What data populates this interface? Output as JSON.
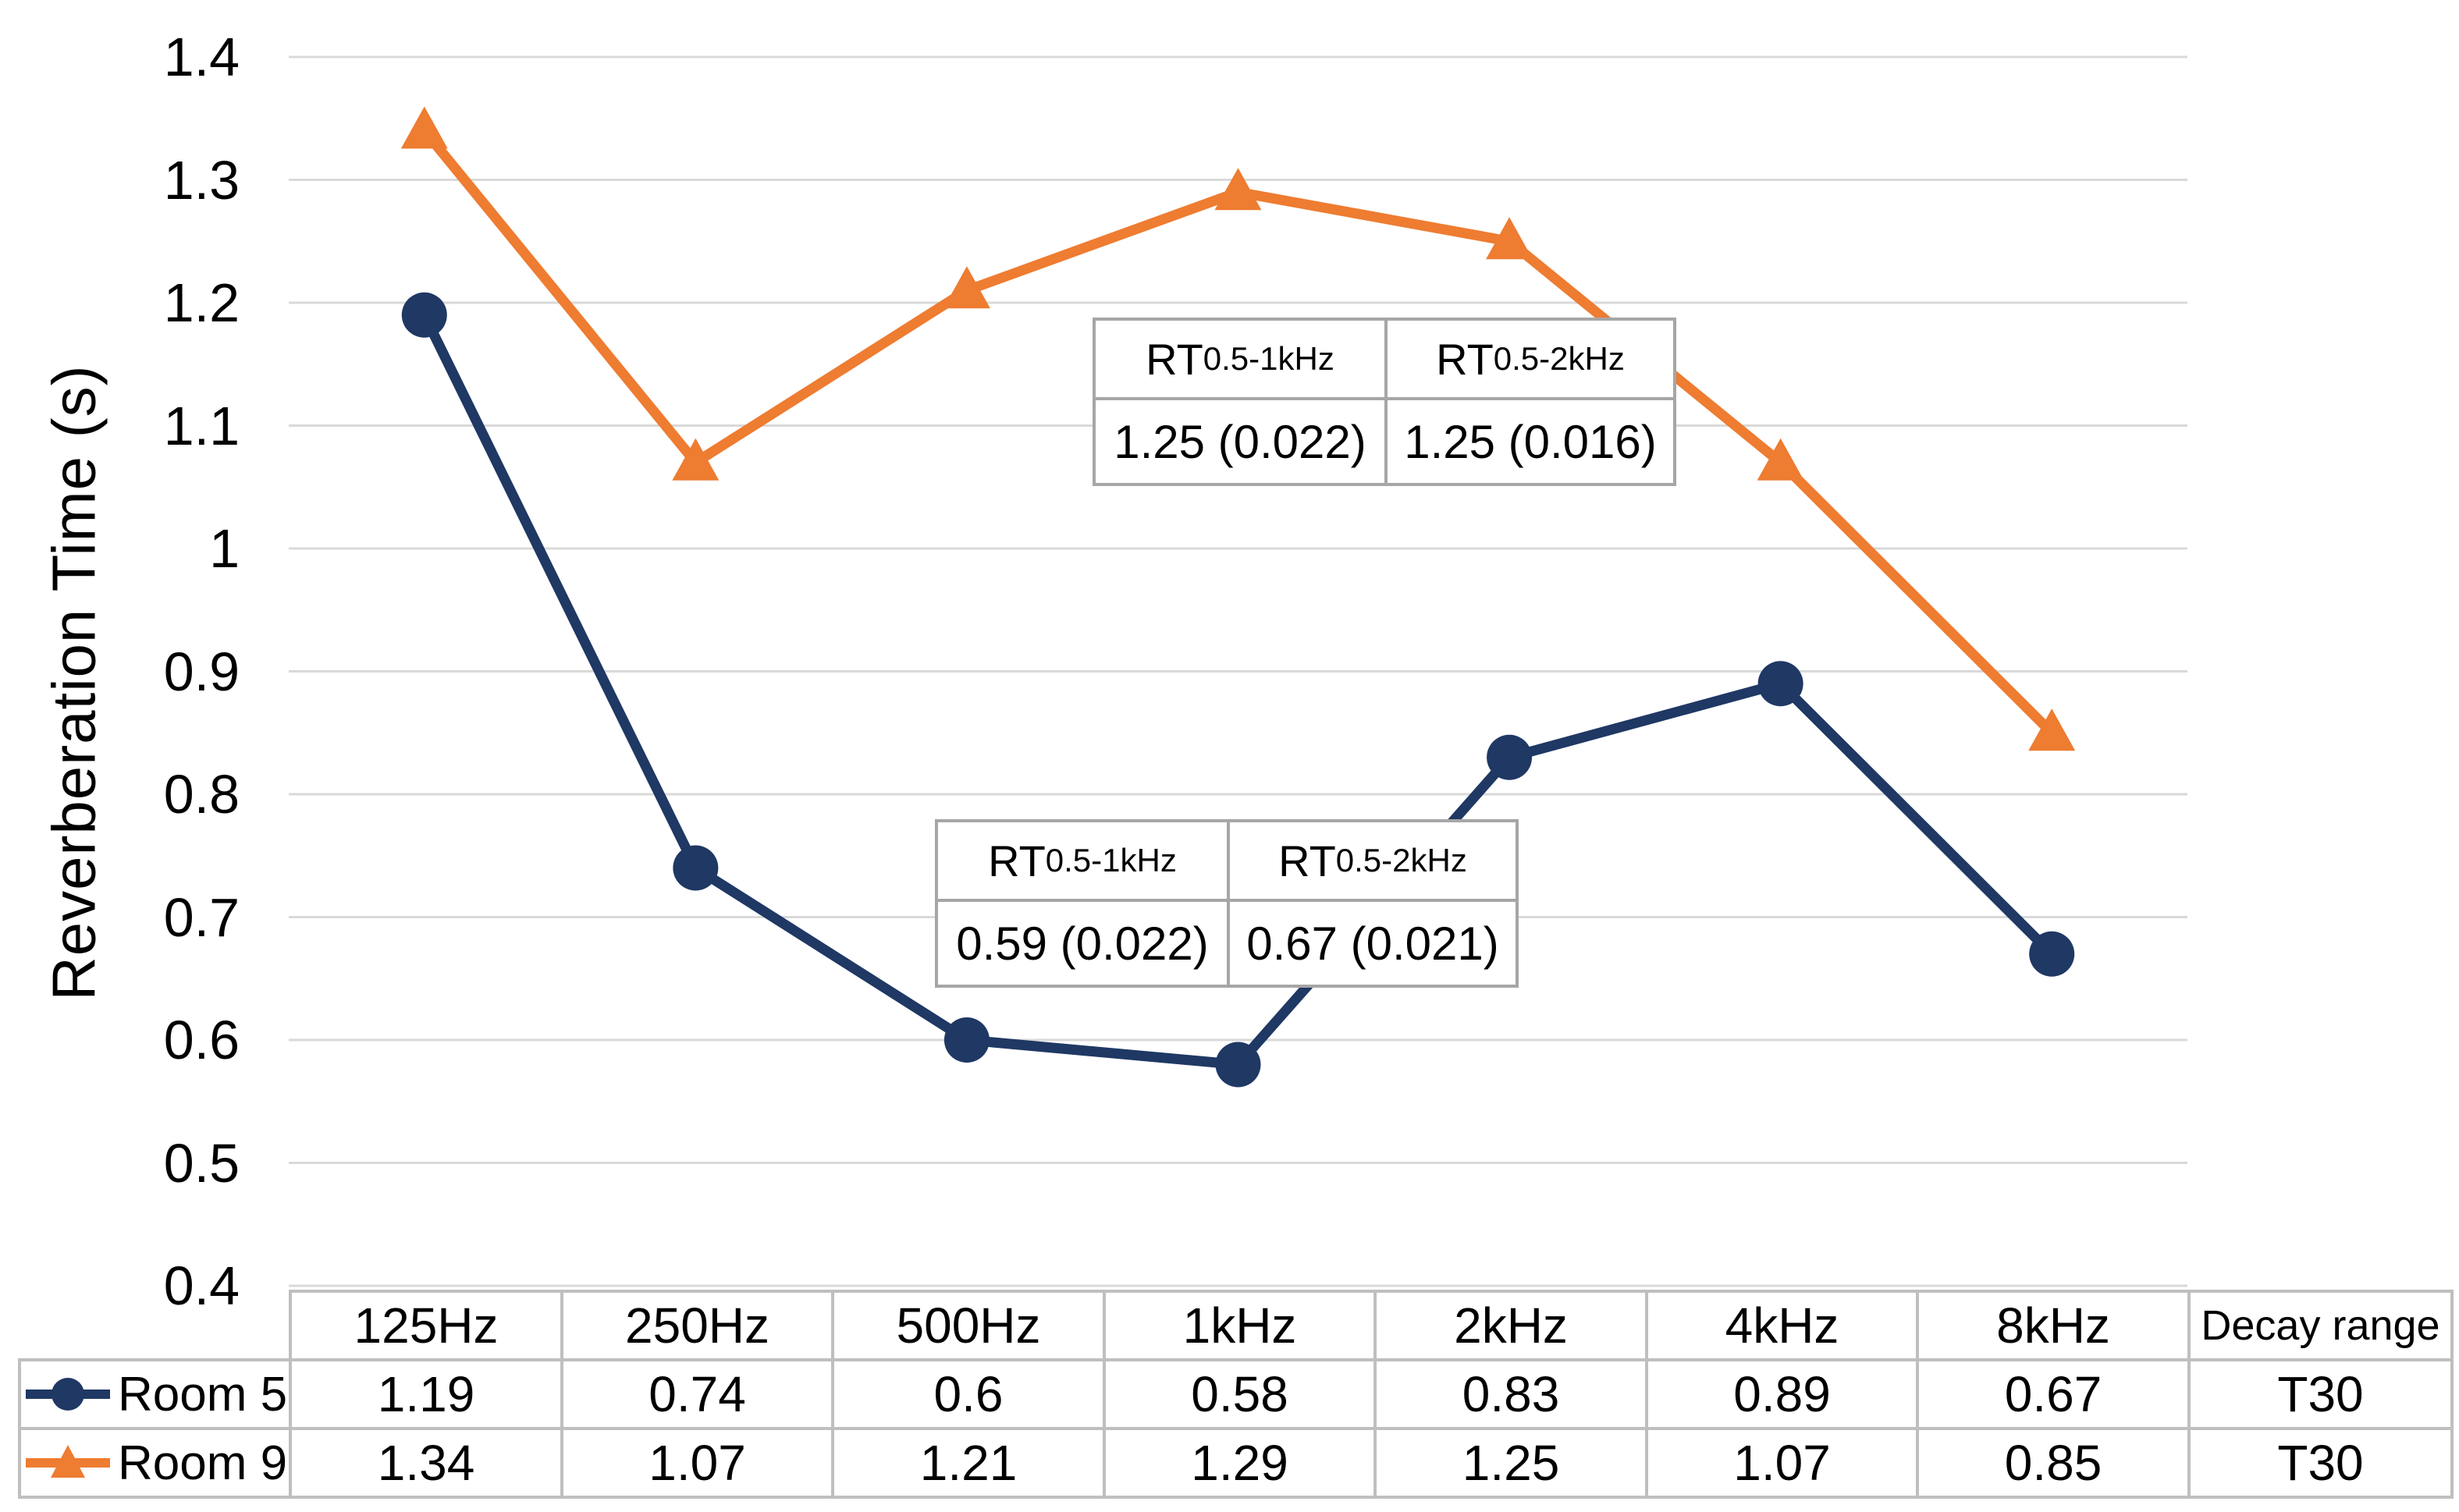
{
  "figure": {
    "background": "#FFFFFF"
  },
  "chart_data": {
    "type": "line",
    "title": "",
    "xlabel": "",
    "ylabel": "Reverberation Time (s)",
    "ylim": [
      0.4,
      1.4
    ],
    "yticks": [
      "1.4",
      "1.3",
      "1.2",
      "1.1",
      "1",
      "0.9",
      "0.8",
      "0.7",
      "0.6",
      "0.5",
      "0.4"
    ],
    "grid": true,
    "legend_position": "bottom-left-of-data-table",
    "categories": [
      "125Hz",
      "250Hz",
      "500Hz",
      "1kHz",
      "2kHz",
      "4kHz",
      "8kHz"
    ],
    "series": [
      {
        "name": "Room 5",
        "color": "#1F3864",
        "marker": "circle",
        "values": [
          1.19,
          0.74,
          0.6,
          0.58,
          0.83,
          0.89,
          0.67
        ]
      },
      {
        "name": "Room 9",
        "color": "#EE7C31",
        "marker": "triangle",
        "values": [
          1.34,
          1.07,
          1.21,
          1.29,
          1.25,
          1.07,
          0.85
        ]
      }
    ],
    "annotations": [
      {
        "cells": [
          {
            "prefix": "RT",
            "sub": "0.5-1kHz",
            "value": "1.25 (0.022)"
          },
          {
            "prefix": "RT",
            "sub": "0.5-2kHz",
            "value": "1.25 (0.016)"
          }
        ]
      },
      {
        "cells": [
          {
            "prefix": "RT",
            "sub": "0.5-1kHz",
            "value": "0.59 (0.022)"
          },
          {
            "prefix": "RT",
            "sub": "0.5-2kHz",
            "value": "0.67 (0.021)"
          }
        ]
      }
    ]
  },
  "table": {
    "col_headers": [
      "125Hz",
      "250Hz",
      "500Hz",
      "1kHz",
      "2kHz",
      "4kHz",
      "8kHz",
      "Decay range"
    ],
    "rows": [
      {
        "label": "Room 5",
        "marker": "circle",
        "color": "#1F3864",
        "values": [
          "1.19",
          "0.74",
          "0.6",
          "0.58",
          "0.83",
          "0.89",
          "0.67"
        ],
        "decay": "T30"
      },
      {
        "label": "Room 9",
        "marker": "triangle",
        "color": "#EE7C31",
        "values": [
          "1.34",
          "1.07",
          "1.21",
          "1.29",
          "1.25",
          "1.07",
          "0.85"
        ],
        "decay": "T30"
      }
    ]
  },
  "colors": {
    "room5": "#1F3864",
    "room9": "#EE7C31",
    "gridline": "#D9D9D9",
    "table_border": "#BFBFBF",
    "annotation_border": "#A6A6A6",
    "text": "#000000"
  }
}
